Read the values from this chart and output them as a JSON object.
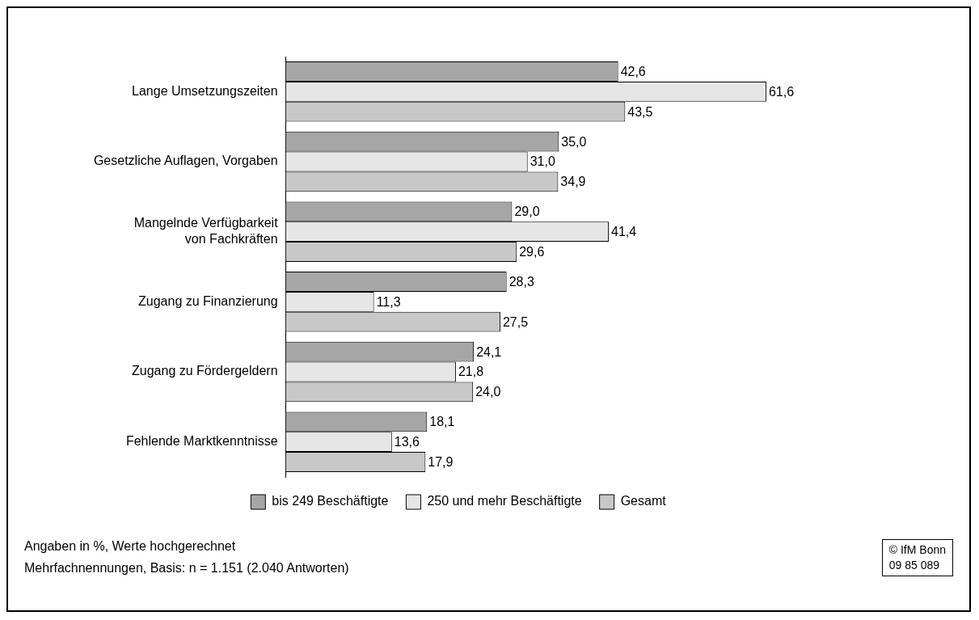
{
  "chart_data": {
    "type": "bar",
    "orientation": "horizontal",
    "categories": [
      "Lange Umsetzungszeiten",
      "Gesetzliche Auflagen, Vorgaben",
      "Mangelnde Verfügbarkeit von Fachkräften",
      "Zugang zu Finanzierung",
      "Zugang zu Fördergeldern",
      "Fehlende Marktkenntnisse"
    ],
    "series": [
      {
        "name": "bis 249 Beschäftigte",
        "color": "#a6a6a6",
        "values": [
          42.6,
          35.0,
          29.0,
          28.3,
          24.1,
          18.1
        ],
        "value_labels": [
          "42,6",
          "35,0",
          "29,0",
          "28,3",
          "24,1",
          "18,1"
        ]
      },
      {
        "name": "250 und mehr Beschäftigte",
        "color": "#e6e6e6",
        "values": [
          61.6,
          31.0,
          41.4,
          11.3,
          21.8,
          13.6
        ],
        "value_labels": [
          "61,6",
          "31,0",
          "41,4",
          "11,3",
          "21,8",
          "13,6"
        ]
      },
      {
        "name": "Gesamt",
        "color": "#c8c8c8",
        "values": [
          43.5,
          34.9,
          29.6,
          27.5,
          24.0,
          17.9
        ],
        "value_labels": [
          "43,5",
          "34,9",
          "29,6",
          "27,5",
          "24,0",
          "17,9"
        ]
      }
    ],
    "legend": "bottom",
    "annotations": [
      "Angaben in %, Werte hochgerechnet",
      "Mehrfachnennungen, Basis: n = 1.151 (2.040 Antworten)",
      "© IfM Bonn",
      "09 85 089"
    ]
  }
}
